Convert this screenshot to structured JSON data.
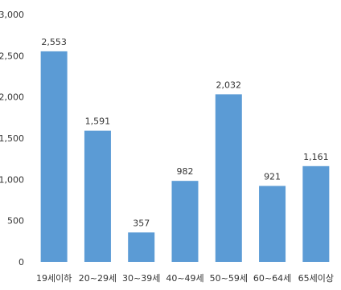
{
  "chart_data": {
    "type": "bar",
    "categories": [
      "19세이하",
      "20~29세",
      "30~39세",
      "40~49세",
      "50~59세",
      "60~64세",
      "65세이상"
    ],
    "values": [
      2553,
      1591,
      357,
      982,
      2032,
      921,
      1161
    ],
    "value_labels": [
      "2,553",
      "1,591",
      "357",
      "982",
      "2,032",
      "921",
      "1,161"
    ],
    "yticks": [
      0,
      500,
      1000,
      1500,
      2000,
      2500,
      3000
    ],
    "ytick_labels": [
      "0",
      "500",
      "1,000",
      "1,500",
      "2,000",
      "2,500",
      "3,000"
    ],
    "ylim": [
      0,
      3000
    ],
    "grid": false,
    "legend": "none",
    "bar_color": "#5b9bd5"
  }
}
